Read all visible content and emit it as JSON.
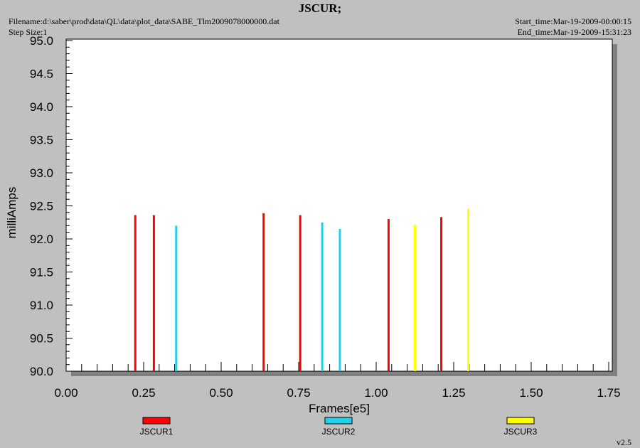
{
  "header": {
    "title": "JSCUR;",
    "filename": "Filename:d:\\saber\\prod\\data\\QL\\data\\plot_data\\SABE_Tlm2009078000000.dat",
    "step_size": "Step Size:1",
    "start_time": "Start_time:Mar-19-2009-00:00:15",
    "end_time": "End_time:Mar-19-2009-15:31:23"
  },
  "footer": {
    "version": "v2.5"
  },
  "chart_data": {
    "type": "bar",
    "xlabel": "Frames[e5]",
    "ylabel": "milliAmps",
    "xlim": [
      0,
      1.75
    ],
    "ylim": [
      90.0,
      95.0
    ],
    "xticks": [
      "0.00",
      "0.25",
      "0.50",
      "0.75",
      "1.00",
      "1.25",
      "1.50",
      "1.75"
    ],
    "yticks": [
      "90.0",
      "90.5",
      "91.0",
      "91.5",
      "92.0",
      "92.5",
      "93.0",
      "93.5",
      "94.0",
      "94.5",
      "95.0"
    ],
    "grid": false,
    "legend_position": "bottom",
    "series": [
      {
        "name": "JSCUR1",
        "color": "#ff0000",
        "points": [
          {
            "x": 0.223,
            "y": 92.36
          },
          {
            "x": 0.283,
            "y": 92.36
          },
          {
            "x": 0.637,
            "y": 92.39
          },
          {
            "x": 0.755,
            "y": 92.36
          },
          {
            "x": 1.04,
            "y": 92.3
          },
          {
            "x": 1.21,
            "y": 92.33
          }
        ]
      },
      {
        "name": "JSCUR2",
        "color": "#22d0e8",
        "points": [
          {
            "x": 0.355,
            "y": 92.2
          },
          {
            "x": 0.826,
            "y": 92.25
          },
          {
            "x": 0.883,
            "y": 92.15
          }
        ]
      },
      {
        "name": "JSCUR3",
        "color": "#ffff00",
        "points": [
          {
            "x": 1.125,
            "y": 92.21
          },
          {
            "x": 1.297,
            "y": 92.46
          }
        ]
      }
    ]
  }
}
